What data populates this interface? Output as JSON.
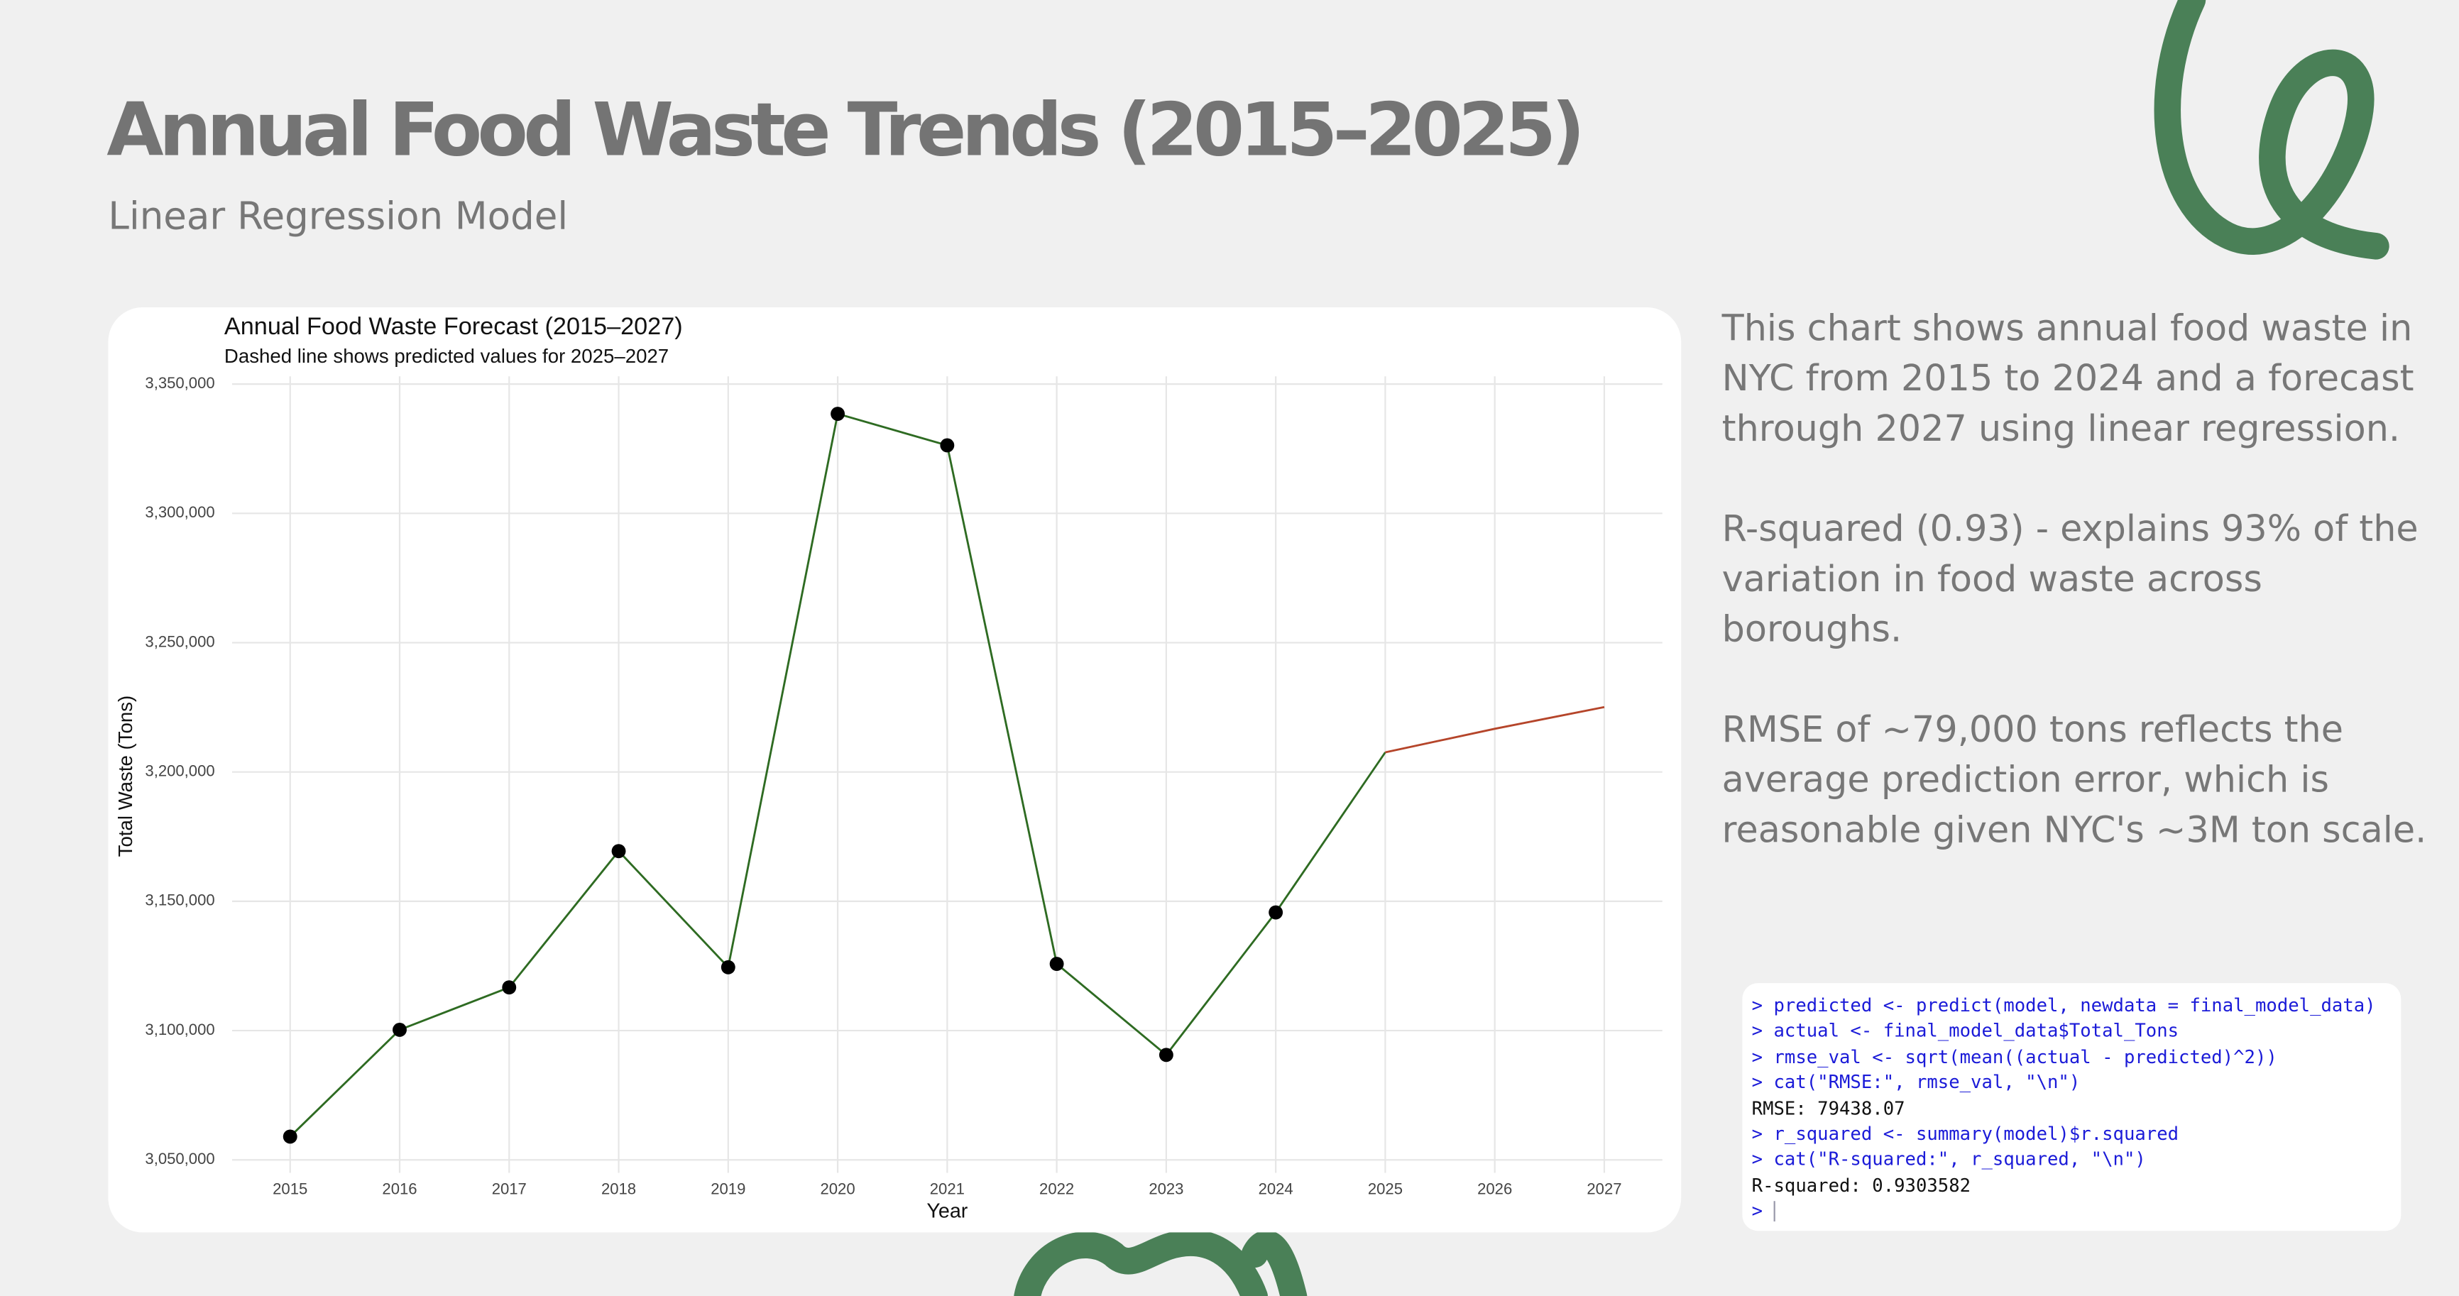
{
  "header": {
    "title": "Annual Food Waste Trends (2015–2025)",
    "subtitle": "Linear Regression Model"
  },
  "notes": [
    "This chart shows annual food waste in NYC from 2015 to 2024 and a forecast through 2027 using linear regression.",
    "R-squared (0.93) - explains 93% of the variation in food waste across boroughs.",
    "RMSE of ~79,000 tons reflects the average prediction error, which is reasonable given NYC's ~3M ton scale."
  ],
  "console": {
    "lines": [
      "> predicted <- predict(model, newdata = final_model_data)",
      "> actual <- final_model_data$Total_Tons",
      "> rmse_val <- sqrt(mean((actual - predicted)^2))",
      "> cat(\"RMSE:\", rmse_val, \"\\n\")",
      "RMSE: 79438.07",
      "> r_squared <- summary(model)$r.squared",
      "> cat(\"R-squared:\", r_squared, \"\\n\")",
      "R-squared: 0.9303582",
      ">"
    ]
  },
  "chart_data": {
    "type": "line",
    "title": "Annual Food Waste Forecast (2015–2027)",
    "subtitle": "Dashed line shows predicted values for 2025–2027",
    "xlabel": "Year",
    "ylabel": "Total Waste (Tons)",
    "x": [
      2015,
      2016,
      2017,
      2018,
      2019,
      2020,
      2021,
      2022,
      2023,
      2024,
      2025,
      2026,
      2027
    ],
    "series": [
      {
        "color": "#2e6b22",
        "values": [
          3059000,
          3100300,
          3116700,
          3169400,
          3124500,
          3338500,
          3326300,
          3125800,
          3090600,
          3145700,
          3207600,
          null,
          null
        ]
      },
      {
        "color": "#b5452a",
        "values": [
          null,
          null,
          null,
          null,
          null,
          null,
          null,
          null,
          null,
          null,
          3207600,
          3216700,
          3225100
        ]
      }
    ],
    "xlim": [
      2014.47,
      2027.53
    ],
    "xticks": [
      2015,
      2016,
      2017,
      2018,
      2019,
      2020,
      2021,
      2022,
      2023,
      2024,
      2025,
      2026,
      2027
    ],
    "ylim": [
      3045000,
      3353000
    ],
    "yticks": [
      {
        "value": 3050000,
        "label": "3,050,000"
      },
      {
        "value": 3100000,
        "label": "3,100,000"
      },
      {
        "value": 3150000,
        "label": "3,150,000"
      },
      {
        "value": 3200000,
        "label": "3,200,000"
      },
      {
        "value": 3250000,
        "label": "3,250,000"
      },
      {
        "value": 3300000,
        "label": "3,300,000"
      },
      {
        "value": 3350000,
        "label": "3,350,000"
      }
    ],
    "grid": true,
    "marker_color": "#000000"
  }
}
